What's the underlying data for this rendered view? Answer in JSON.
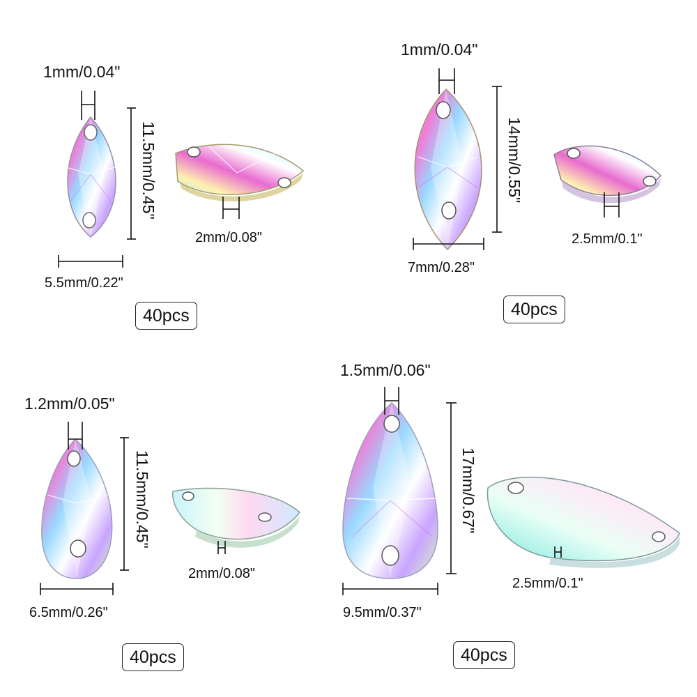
{
  "products": [
    {
      "id": "marquise-small",
      "hole_size": "1mm/0.04\"",
      "length": "11.5mm/0.45\"",
      "width": "5.5mm/0.22\"",
      "thickness": "2mm/0.08\"",
      "quantity": "40pcs"
    },
    {
      "id": "marquise-large",
      "hole_size": "1mm/0.04\"",
      "length": "14mm/0.55\"",
      "width": "7mm/0.28\"",
      "thickness": "2.5mm/0.1\"",
      "quantity": "40pcs"
    },
    {
      "id": "teardrop-small",
      "hole_size": "1.2mm/0.05\"",
      "length": "11.5mm/0.45\"",
      "width": "6.5mm/0.26\"",
      "thickness": "2mm/0.08\"",
      "quantity": "40pcs"
    },
    {
      "id": "teardrop-large",
      "hole_size": "1.5mm/0.06\"",
      "length": "17mm/0.67\"",
      "width": "9.5mm/0.37\"",
      "thickness": "2.5mm/0.1\"",
      "quantity": "40pcs"
    }
  ],
  "colors": {
    "background": "#ffffff",
    "text": "#111111",
    "ab_palette": [
      "#e040b8",
      "#8a5cf0",
      "#4cc9f0",
      "#b8f5a0",
      "#ffe17a",
      "#ffffff"
    ]
  }
}
